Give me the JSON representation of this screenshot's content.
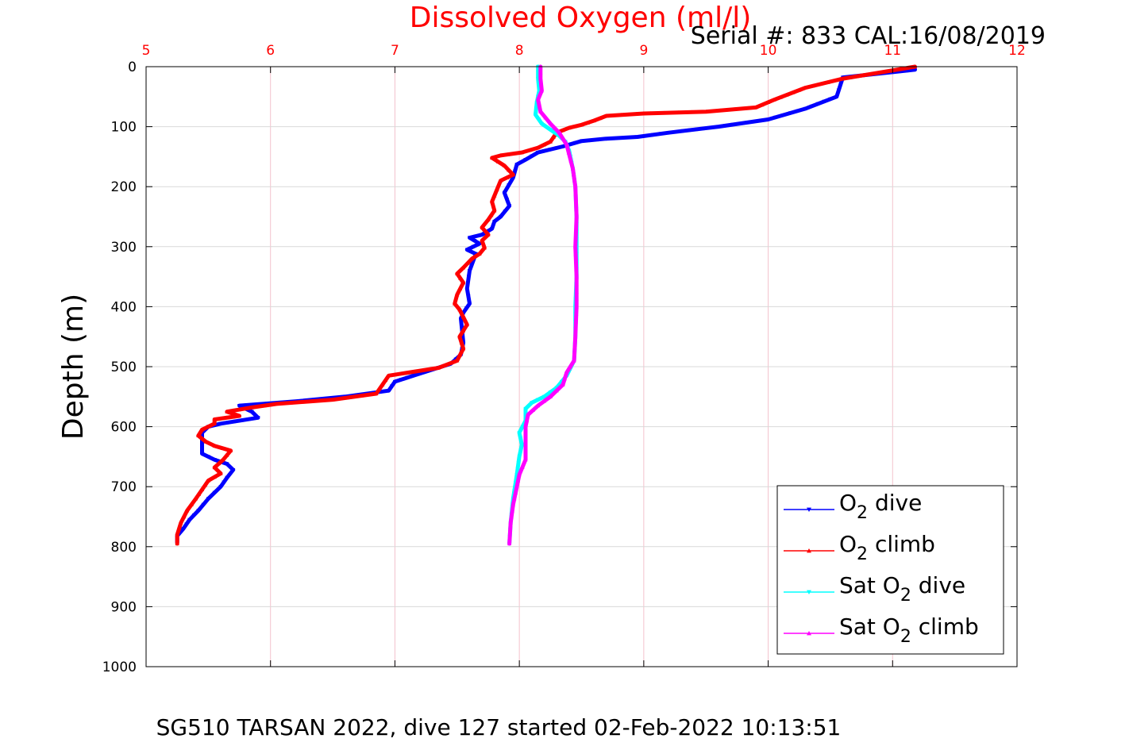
{
  "chart_data": {
    "type": "line",
    "title": "Dissolved Oxygen (ml/l)",
    "subtitle": "Serial #: 833  CAL:16/08/2019",
    "caption": "SG510 TARSAN 2022, dive 127 started 02-Feb-2022 10:13:51",
    "xlabel": "",
    "ylabel": "Depth (m)",
    "xlim": [
      5,
      12
    ],
    "ylim": [
      0,
      1000
    ],
    "y_reversed": true,
    "x_axis_position": "top",
    "xticks": [
      "5",
      "6",
      "7",
      "8",
      "9",
      "10",
      "11",
      "12"
    ],
    "yticks": [
      "0",
      "100",
      "200",
      "300",
      "400",
      "500",
      "600",
      "700",
      "800",
      "900",
      "1000"
    ],
    "grid": true,
    "legend_position": "bottom-right",
    "colors": {
      "title": "#ff0000",
      "x_ticks": "#ff0000",
      "grid": "#f4c2cc"
    },
    "series": [
      {
        "name": "O",
        "name_sub": "2",
        "name_suffix": " dive",
        "color": "#0000ff",
        "marker": "triangle-down",
        "points": [
          [
            11.18,
            5
          ],
          [
            10.6,
            18
          ],
          [
            10.55,
            50
          ],
          [
            10.3,
            70
          ],
          [
            10.0,
            88
          ],
          [
            9.6,
            100
          ],
          [
            9.2,
            110
          ],
          [
            8.95,
            117
          ],
          [
            8.7,
            120
          ],
          [
            8.5,
            124
          ],
          [
            8.35,
            133
          ],
          [
            8.15,
            143
          ],
          [
            8.05,
            155
          ],
          [
            7.98,
            163
          ],
          [
            7.95,
            185
          ],
          [
            7.88,
            210
          ],
          [
            7.92,
            232
          ],
          [
            7.85,
            250
          ],
          [
            7.8,
            258
          ],
          [
            7.78,
            270
          ],
          [
            7.7,
            280
          ],
          [
            7.6,
            285
          ],
          [
            7.68,
            295
          ],
          [
            7.58,
            305
          ],
          [
            7.65,
            312
          ],
          [
            7.6,
            340
          ],
          [
            7.58,
            370
          ],
          [
            7.6,
            395
          ],
          [
            7.55,
            410
          ],
          [
            7.53,
            420
          ],
          [
            7.55,
            460
          ],
          [
            7.53,
            480
          ],
          [
            7.45,
            495
          ],
          [
            7.3,
            505
          ],
          [
            7.15,
            515
          ],
          [
            7.0,
            525
          ],
          [
            6.95,
            540
          ],
          [
            6.6,
            550
          ],
          [
            6.2,
            558
          ],
          [
            5.75,
            565
          ],
          [
            5.85,
            575
          ],
          [
            5.9,
            585
          ],
          [
            5.6,
            595
          ],
          [
            5.5,
            600
          ],
          [
            5.45,
            610
          ],
          [
            5.45,
            628
          ],
          [
            5.45,
            645
          ],
          [
            5.55,
            655
          ],
          [
            5.65,
            662
          ],
          [
            5.7,
            672
          ],
          [
            5.65,
            685
          ],
          [
            5.6,
            700
          ],
          [
            5.5,
            720
          ],
          [
            5.42,
            740
          ],
          [
            5.35,
            755
          ],
          [
            5.3,
            770
          ],
          [
            5.25,
            782
          ],
          [
            5.25,
            793
          ]
        ]
      },
      {
        "name": "O",
        "name_sub": "2",
        "name_suffix": " climb",
        "color": "#ff0000",
        "marker": "triangle-up",
        "points": [
          [
            11.18,
            0
          ],
          [
            10.6,
            20
          ],
          [
            10.3,
            35
          ],
          [
            10.05,
            55
          ],
          [
            9.9,
            68
          ],
          [
            9.5,
            75
          ],
          [
            9.0,
            78
          ],
          [
            8.7,
            82
          ],
          [
            8.6,
            90
          ],
          [
            8.5,
            97
          ],
          [
            8.4,
            102
          ],
          [
            8.3,
            110
          ],
          [
            8.25,
            125
          ],
          [
            8.15,
            135
          ],
          [
            8.02,
            143
          ],
          [
            7.85,
            148
          ],
          [
            7.78,
            152
          ],
          [
            7.88,
            165
          ],
          [
            7.95,
            180
          ],
          [
            7.85,
            190
          ],
          [
            7.82,
            205
          ],
          [
            7.78,
            225
          ],
          [
            7.8,
            240
          ],
          [
            7.75,
            255
          ],
          [
            7.7,
            268
          ],
          [
            7.75,
            280
          ],
          [
            7.7,
            290
          ],
          [
            7.72,
            302
          ],
          [
            7.68,
            312
          ],
          [
            7.62,
            320
          ],
          [
            7.55,
            335
          ],
          [
            7.5,
            345
          ],
          [
            7.55,
            360
          ],
          [
            7.5,
            380
          ],
          [
            7.48,
            395
          ],
          [
            7.52,
            405
          ],
          [
            7.58,
            430
          ],
          [
            7.52,
            450
          ],
          [
            7.55,
            470
          ],
          [
            7.5,
            490
          ],
          [
            7.35,
            502
          ],
          [
            7.1,
            510
          ],
          [
            6.95,
            515
          ],
          [
            6.9,
            530
          ],
          [
            6.85,
            545
          ],
          [
            6.5,
            555
          ],
          [
            6.05,
            562
          ],
          [
            5.85,
            568
          ],
          [
            5.65,
            575
          ],
          [
            5.75,
            582
          ],
          [
            5.55,
            588
          ],
          [
            5.55,
            595
          ],
          [
            5.45,
            605
          ],
          [
            5.42,
            615
          ],
          [
            5.48,
            625
          ],
          [
            5.55,
            632
          ],
          [
            5.68,
            640
          ],
          [
            5.62,
            655
          ],
          [
            5.55,
            668
          ],
          [
            5.6,
            678
          ],
          [
            5.5,
            690
          ],
          [
            5.45,
            705
          ],
          [
            5.4,
            720
          ],
          [
            5.33,
            740
          ],
          [
            5.28,
            760
          ],
          [
            5.25,
            780
          ],
          [
            5.25,
            795
          ]
        ]
      },
      {
        "name": "Sat O",
        "name_sub": "2",
        "name_suffix": " dive",
        "color": "#00ffff",
        "marker": "triangle-down",
        "points": [
          [
            8.15,
            0
          ],
          [
            8.15,
            20
          ],
          [
            8.16,
            40
          ],
          [
            8.14,
            60
          ],
          [
            8.13,
            80
          ],
          [
            8.18,
            95
          ],
          [
            8.25,
            105
          ],
          [
            8.32,
            115
          ],
          [
            8.37,
            125
          ],
          [
            8.4,
            140
          ],
          [
            8.43,
            170
          ],
          [
            8.45,
            200
          ],
          [
            8.46,
            250
          ],
          [
            8.46,
            300
          ],
          [
            8.46,
            350
          ],
          [
            8.45,
            400
          ],
          [
            8.45,
            450
          ],
          [
            8.44,
            490
          ],
          [
            8.38,
            515
          ],
          [
            8.3,
            535
          ],
          [
            8.2,
            550
          ],
          [
            8.1,
            560
          ],
          [
            8.05,
            570
          ],
          [
            8.05,
            590
          ],
          [
            8.0,
            610
          ],
          [
            8.02,
            630
          ],
          [
            8.0,
            650
          ],
          [
            7.98,
            680
          ],
          [
            7.95,
            720
          ],
          [
            7.93,
            760
          ],
          [
            7.92,
            795
          ]
        ]
      },
      {
        "name": "Sat O",
        "name_sub": "2",
        "name_suffix": " climb",
        "color": "#ff00ff",
        "marker": "triangle-up",
        "points": [
          [
            8.17,
            0
          ],
          [
            8.17,
            20
          ],
          [
            8.18,
            40
          ],
          [
            8.15,
            55
          ],
          [
            8.17,
            75
          ],
          [
            8.25,
            95
          ],
          [
            8.32,
            110
          ],
          [
            8.38,
            130
          ],
          [
            8.43,
            170
          ],
          [
            8.45,
            200
          ],
          [
            8.46,
            250
          ],
          [
            8.45,
            300
          ],
          [
            8.46,
            350
          ],
          [
            8.46,
            400
          ],
          [
            8.45,
            450
          ],
          [
            8.44,
            490
          ],
          [
            8.38,
            510
          ],
          [
            8.35,
            530
          ],
          [
            8.25,
            550
          ],
          [
            8.15,
            565
          ],
          [
            8.07,
            580
          ],
          [
            8.05,
            600
          ],
          [
            8.05,
            630
          ],
          [
            8.05,
            655
          ],
          [
            8.0,
            680
          ],
          [
            7.98,
            700
          ],
          [
            7.95,
            730
          ],
          [
            7.93,
            760
          ],
          [
            7.92,
            795
          ]
        ]
      }
    ]
  }
}
